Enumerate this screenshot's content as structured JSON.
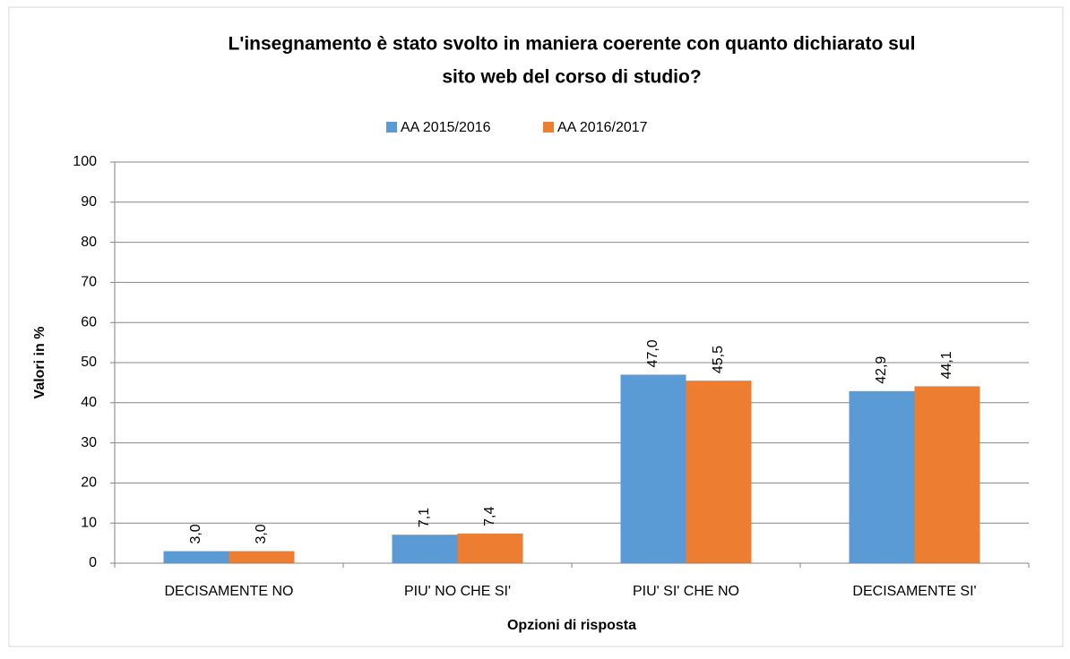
{
  "chart_data": {
    "type": "bar",
    "title": [
      "L'insegnamento è stato svolto in maniera coerente con quanto dichiarato sul",
      "sito web del corso di studio?"
    ],
    "x_label": "Opzioni di risposta",
    "y_label": "Valori in %",
    "categories": [
      "DECISAMENTE NO",
      "PIU' NO CHE SI'",
      "PIU' SI' CHE NO",
      "DECISAMENTE SI'"
    ],
    "series": [
      {
        "name": "AA 2015/2016",
        "color": "#5b9bd5",
        "values": [
          3.0,
          7.1,
          47.0,
          42.9
        ],
        "value_labels": [
          "3,0",
          "7,1",
          "47,0",
          "42,9"
        ]
      },
      {
        "name": "AA 2016/2017",
        "color": "#ed7d31",
        "values": [
          3.0,
          7.4,
          45.5,
          44.1
        ],
        "value_labels": [
          "3,0",
          "7,4",
          "45,5",
          "44,1"
        ]
      }
    ],
    "ylim": [
      0,
      100
    ],
    "yticks": [
      0,
      10,
      20,
      30,
      40,
      50,
      60,
      70,
      80,
      90,
      100
    ],
    "grid": true,
    "legend": "top"
  }
}
